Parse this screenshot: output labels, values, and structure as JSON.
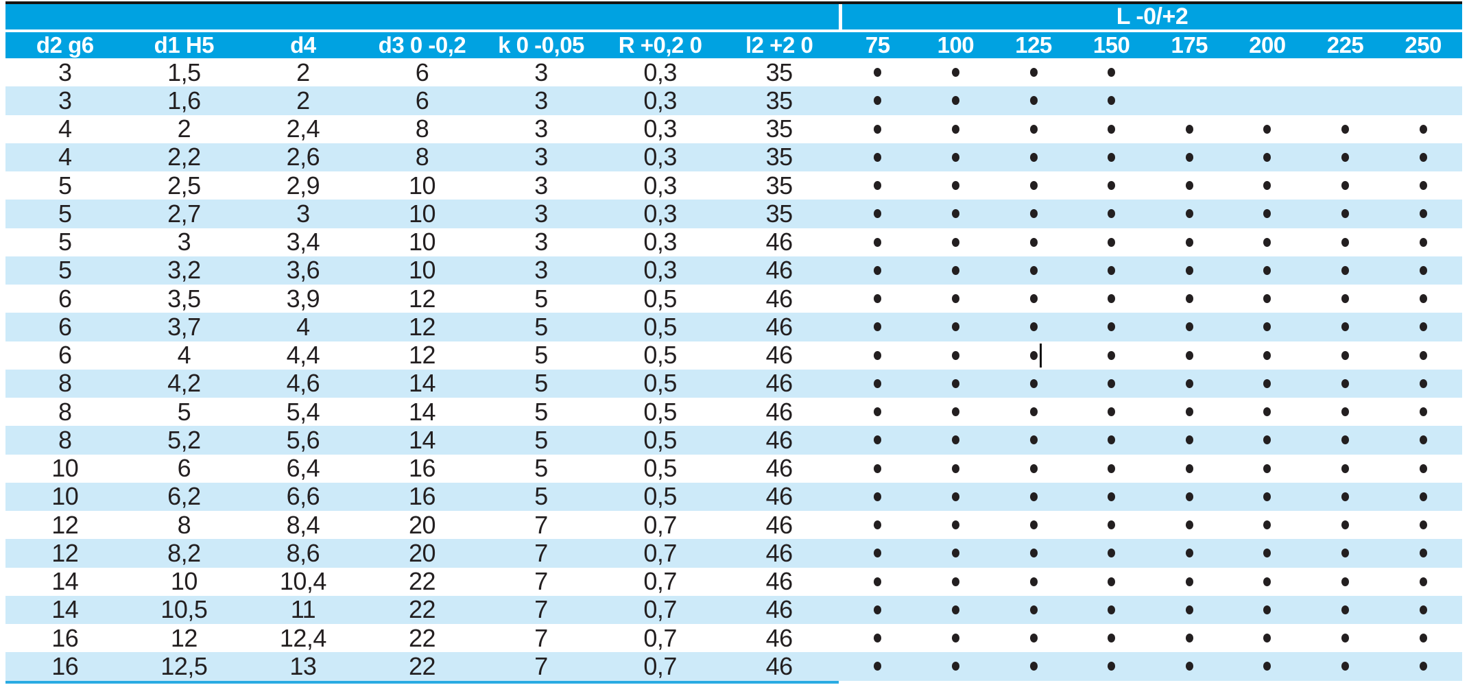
{
  "colors": {
    "header_blue": "#00A2E1",
    "row_alt_blue": "#CDEAF9",
    "text_dark": "#231F20",
    "header_text": "#FFFFFF",
    "top_border_black": "#161412",
    "bottom_rule_cyan": "#2AABE2"
  },
  "table": {
    "group_header": {
      "label": "L -0/+2",
      "columns": [
        "75",
        "100",
        "125",
        "150",
        "175",
        "200",
        "225",
        "250"
      ]
    },
    "spec_columns": [
      {
        "key": "d2_g6",
        "label": "d2 g6"
      },
      {
        "key": "d1_H5",
        "label": "d1 H5"
      },
      {
        "key": "d4",
        "label": "d4"
      },
      {
        "key": "d3",
        "label": "d3 0 -0,2"
      },
      {
        "key": "k",
        "label": "k 0 -0,05"
      },
      {
        "key": "R",
        "label": "R +0,2 0"
      },
      {
        "key": "l2",
        "label": "l2 +2 0"
      }
    ],
    "rows": [
      {
        "specs": [
          "3",
          "1,5",
          "2",
          "6",
          "3",
          "0,3",
          "35"
        ],
        "availability": [
          true,
          true,
          true,
          true,
          false,
          false,
          false,
          false
        ]
      },
      {
        "specs": [
          "3",
          "1,6",
          "2",
          "6",
          "3",
          "0,3",
          "35"
        ],
        "availability": [
          true,
          true,
          true,
          true,
          false,
          false,
          false,
          false
        ]
      },
      {
        "specs": [
          "4",
          "2",
          "2,4",
          "8",
          "3",
          "0,3",
          "35"
        ],
        "availability": [
          true,
          true,
          true,
          true,
          true,
          true,
          true,
          true
        ]
      },
      {
        "specs": [
          "4",
          "2,2",
          "2,6",
          "8",
          "3",
          "0,3",
          "35"
        ],
        "availability": [
          true,
          true,
          true,
          true,
          true,
          true,
          true,
          true
        ]
      },
      {
        "specs": [
          "5",
          "2,5",
          "2,9",
          "10",
          "3",
          "0,3",
          "35"
        ],
        "availability": [
          true,
          true,
          true,
          true,
          true,
          true,
          true,
          true
        ]
      },
      {
        "specs": [
          "5",
          "2,7",
          "3",
          "10",
          "3",
          "0,3",
          "35"
        ],
        "availability": [
          true,
          true,
          true,
          true,
          true,
          true,
          true,
          true
        ]
      },
      {
        "specs": [
          "5",
          "3",
          "3,4",
          "10",
          "3",
          "0,3",
          "46"
        ],
        "availability": [
          true,
          true,
          true,
          true,
          true,
          true,
          true,
          true
        ]
      },
      {
        "specs": [
          "5",
          "3,2",
          "3,6",
          "10",
          "3",
          "0,3",
          "46"
        ],
        "availability": [
          true,
          true,
          true,
          true,
          true,
          true,
          true,
          true
        ]
      },
      {
        "specs": [
          "6",
          "3,5",
          "3,9",
          "12",
          "5",
          "0,5",
          "46"
        ],
        "availability": [
          true,
          true,
          true,
          true,
          true,
          true,
          true,
          true
        ]
      },
      {
        "specs": [
          "6",
          "3,7",
          "4",
          "12",
          "5",
          "0,5",
          "46"
        ],
        "availability": [
          true,
          true,
          true,
          true,
          true,
          true,
          true,
          true
        ]
      },
      {
        "specs": [
          "6",
          "4",
          "4,4",
          "12",
          "5",
          "0,5",
          "46"
        ],
        "availability": [
          true,
          true,
          true,
          true,
          true,
          true,
          true,
          true
        ]
      },
      {
        "specs": [
          "8",
          "4,2",
          "4,6",
          "14",
          "5",
          "0,5",
          "46"
        ],
        "availability": [
          true,
          true,
          true,
          true,
          true,
          true,
          true,
          true
        ]
      },
      {
        "specs": [
          "8",
          "5",
          "5,4",
          "14",
          "5",
          "0,5",
          "46"
        ],
        "availability": [
          true,
          true,
          true,
          true,
          true,
          true,
          true,
          true
        ]
      },
      {
        "specs": [
          "8",
          "5,2",
          "5,6",
          "14",
          "5",
          "0,5",
          "46"
        ],
        "availability": [
          true,
          true,
          true,
          true,
          true,
          true,
          true,
          true
        ]
      },
      {
        "specs": [
          "10",
          "6",
          "6,4",
          "16",
          "5",
          "0,5",
          "46"
        ],
        "availability": [
          true,
          true,
          true,
          true,
          true,
          true,
          true,
          true
        ]
      },
      {
        "specs": [
          "10",
          "6,2",
          "6,6",
          "16",
          "5",
          "0,5",
          "46"
        ],
        "availability": [
          true,
          true,
          true,
          true,
          true,
          true,
          true,
          true
        ]
      },
      {
        "specs": [
          "12",
          "8",
          "8,4",
          "20",
          "7",
          "0,7",
          "46"
        ],
        "availability": [
          true,
          true,
          true,
          true,
          true,
          true,
          true,
          true
        ]
      },
      {
        "specs": [
          "12",
          "8,2",
          "8,6",
          "20",
          "7",
          "0,7",
          "46"
        ],
        "availability": [
          true,
          true,
          true,
          true,
          true,
          true,
          true,
          true
        ]
      },
      {
        "specs": [
          "14",
          "10",
          "10,4",
          "22",
          "7",
          "0,7",
          "46"
        ],
        "availability": [
          true,
          true,
          true,
          true,
          true,
          true,
          true,
          true
        ]
      },
      {
        "specs": [
          "14",
          "10,5",
          "11",
          "22",
          "7",
          "0,7",
          "46"
        ],
        "availability": [
          true,
          true,
          true,
          true,
          true,
          true,
          true,
          true
        ]
      },
      {
        "specs": [
          "16",
          "12",
          "12,4",
          "22",
          "7",
          "0,7",
          "46"
        ],
        "availability": [
          true,
          true,
          true,
          true,
          true,
          true,
          true,
          true
        ]
      },
      {
        "specs": [
          "16",
          "12,5",
          "13",
          "22",
          "7",
          "0,7",
          "46"
        ],
        "availability": [
          true,
          true,
          true,
          true,
          true,
          true,
          true,
          true
        ]
      }
    ],
    "cursor_artifact": {
      "row": 11,
      "length_column": "125"
    }
  }
}
